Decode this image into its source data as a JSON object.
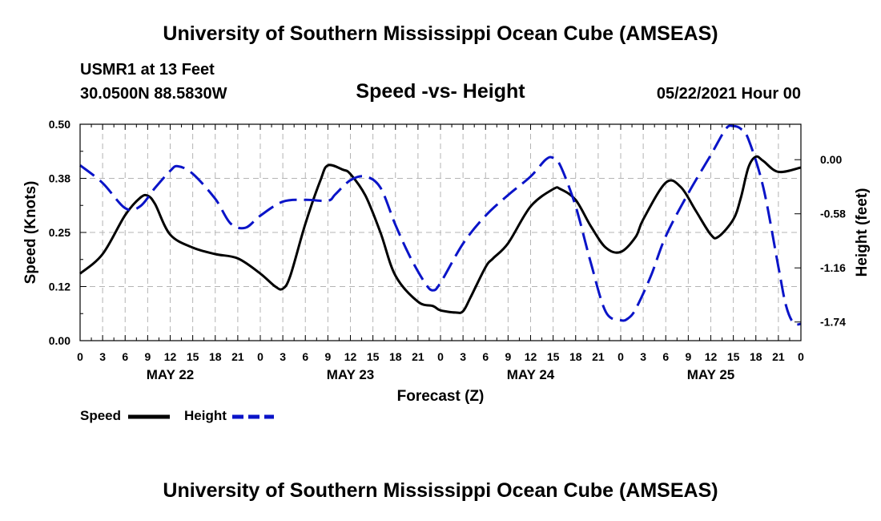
{
  "header": {
    "title": "University of Southern Mississippi Ocean Cube (AMSEAS)",
    "station": "USMR1 at 13 Feet",
    "coords": "30.0500N  88.5830W",
    "subtitle": "Speed -vs- Height",
    "datetime": "05/22/2021 Hour 00"
  },
  "footer": {
    "title": "University of Southern Mississippi Ocean Cube (AMSEAS)"
  },
  "legend": {
    "speed": "Speed",
    "height": "Height"
  },
  "colors": {
    "speed": "#000000",
    "height": "#0a14c8",
    "grid": "#b4b4b4"
  },
  "chart_data": {
    "type": "line",
    "title": "Speed -vs- Height",
    "xlabel": "Forecast (Z)",
    "ylabel": "Speed (Knots)",
    "y2label": "Height (feet)",
    "xlim": [
      0,
      96
    ],
    "ylim": [
      0,
      0.5
    ],
    "y2lim": [
      -1.94,
      0.38
    ],
    "grid": true,
    "x_ticks": [
      0,
      3,
      6,
      9,
      12,
      15,
      18,
      21,
      24,
      27,
      30,
      33,
      36,
      39,
      42,
      45,
      48,
      51,
      54,
      57,
      60,
      63,
      66,
      69,
      72,
      75,
      78,
      81,
      84,
      87,
      90,
      93,
      96
    ],
    "x_tick_labels": [
      "0",
      "3",
      "6",
      "9",
      "12",
      "15",
      "18",
      "21",
      "0",
      "3",
      "6",
      "9",
      "12",
      "15",
      "18",
      "21",
      "0",
      "3",
      "6",
      "9",
      "12",
      "15",
      "18",
      "21",
      "0",
      "3",
      "6",
      "9",
      "12",
      "15",
      "18",
      "21",
      "0"
    ],
    "day_labels": [
      {
        "x": 12,
        "label": "MAY 22"
      },
      {
        "x": 36,
        "label": "MAY 23"
      },
      {
        "x": 60,
        "label": "MAY 24"
      },
      {
        "x": 84,
        "label": "MAY 25"
      }
    ],
    "y_ticks": [
      0.0,
      0.125,
      0.25,
      0.375,
      0.5
    ],
    "y_tick_labels": [
      "0.00",
      "0.12",
      "0.25",
      "0.38",
      "0.50"
    ],
    "y2_ticks": [
      0.0,
      -0.58,
      -1.16,
      -1.74
    ],
    "y2_tick_labels": [
      "0.00",
      "-0.58",
      "-1.16",
      "-1.74"
    ],
    "series": [
      {
        "name": "Speed",
        "axis": "left",
        "style": "solid",
        "x": [
          0,
          3,
          6,
          8,
          9,
          10,
          12,
          15,
          18,
          21,
          24,
          26,
          27,
          28,
          30,
          32,
          33,
          35,
          36,
          38,
          40,
          42,
          45,
          47,
          48,
          50,
          51,
          52,
          54,
          55,
          57,
          60,
          63,
          64,
          66,
          68,
          70,
          72,
          74,
          75,
          78,
          80,
          82,
          84,
          85,
          87,
          88,
          89,
          90,
          91,
          93,
          96
        ],
        "y": [
          0.155,
          0.2,
          0.29,
          0.33,
          0.335,
          0.315,
          0.245,
          0.215,
          0.2,
          0.19,
          0.155,
          0.125,
          0.12,
          0.15,
          0.27,
          0.37,
          0.405,
          0.395,
          0.385,
          0.335,
          0.25,
          0.15,
          0.09,
          0.08,
          0.07,
          0.065,
          0.068,
          0.1,
          0.17,
          0.19,
          0.225,
          0.31,
          0.35,
          0.35,
          0.325,
          0.265,
          0.215,
          0.205,
          0.24,
          0.28,
          0.365,
          0.355,
          0.3,
          0.245,
          0.24,
          0.28,
          0.33,
          0.4,
          0.425,
          0.415,
          0.39,
          0.4
        ]
      },
      {
        "name": "Height",
        "axis": "right",
        "style": "dashed",
        "x": [
          0,
          3,
          6,
          8,
          10,
          12,
          13,
          15,
          18,
          20,
          22,
          24,
          27,
          30,
          33,
          34,
          36,
          38,
          40,
          42,
          44,
          46,
          47,
          48,
          51,
          54,
          57,
          60,
          62,
          63,
          64,
          66,
          68,
          70,
          72,
          73,
          74,
          76,
          78,
          81,
          84,
          86,
          87,
          88,
          89,
          91,
          93,
          94,
          95,
          96
        ],
        "y": [
          -0.06,
          -0.25,
          -0.52,
          -0.5,
          -0.3,
          -0.12,
          -0.07,
          -0.15,
          -0.42,
          -0.68,
          -0.73,
          -0.6,
          -0.45,
          -0.43,
          -0.44,
          -0.37,
          -0.22,
          -0.18,
          -0.3,
          -0.7,
          -1.05,
          -1.33,
          -1.4,
          -1.32,
          -0.9,
          -0.6,
          -0.38,
          -0.18,
          0.0,
          0.02,
          -0.07,
          -0.5,
          -1.1,
          -1.63,
          -1.72,
          -1.7,
          -1.6,
          -1.25,
          -0.82,
          -0.36,
          0.05,
          0.33,
          0.36,
          0.33,
          0.22,
          -0.3,
          -1.15,
          -1.56,
          -1.75,
          -1.76
        ]
      }
    ]
  }
}
